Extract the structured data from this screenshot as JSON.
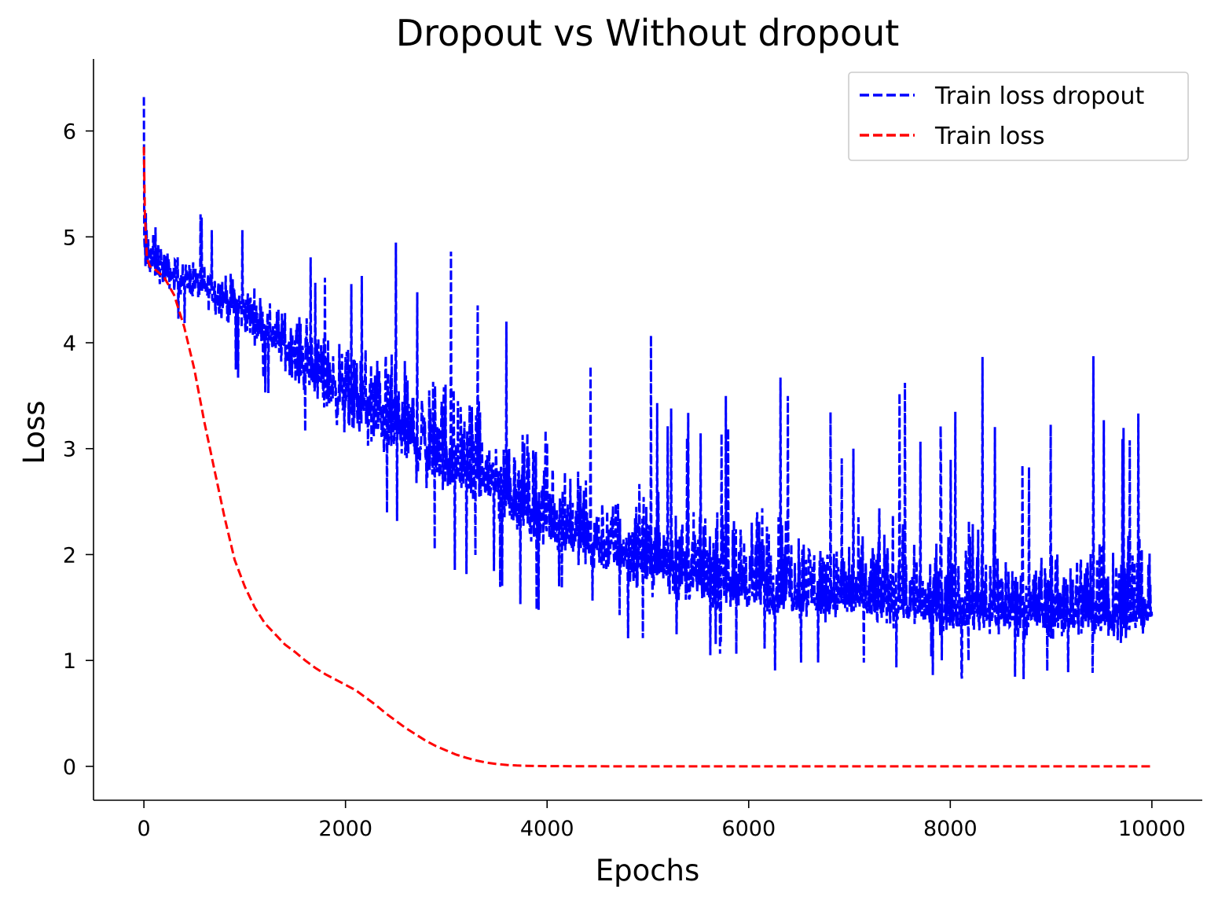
{
  "chart_data": {
    "type": "line",
    "title": "Dropout vs Without dropout",
    "xlabel": "Epochs",
    "ylabel": "Loss",
    "xlim": [
      -500,
      10500
    ],
    "ylim": [
      -0.32,
      6.68
    ],
    "xticks": [
      0,
      2000,
      4000,
      6000,
      8000,
      10000
    ],
    "xtick_labels": [
      "0",
      "2000",
      "4000",
      "6000",
      "8000",
      "10000"
    ],
    "yticks": [
      0,
      1,
      2,
      3,
      4,
      5,
      6
    ],
    "ytick_labels": [
      "0",
      "1",
      "2",
      "3",
      "4",
      "5",
      "6"
    ],
    "grid": false,
    "legend_position": "top-right",
    "series": [
      {
        "name": "Train loss dropout",
        "color": "#0000ff",
        "line_style": "dashed",
        "x": [
          0,
          250,
          500,
          750,
          1000,
          1250,
          1500,
          1750,
          2000,
          2250,
          2500,
          2750,
          3000,
          3250,
          3500,
          3750,
          4000,
          4250,
          4500,
          4750,
          5000,
          5250,
          5500,
          5750,
          6000,
          6250,
          6500,
          6750,
          7000,
          7250,
          7500,
          7750,
          8000,
          8250,
          8500,
          8750,
          9000,
          9250,
          9500,
          9750,
          10000
        ],
        "mean": [
          4.8,
          4.65,
          4.55,
          4.45,
          4.3,
          4.1,
          3.9,
          3.7,
          3.5,
          3.35,
          3.2,
          3.05,
          2.95,
          2.8,
          2.65,
          2.5,
          2.35,
          2.2,
          2.1,
          2.0,
          1.95,
          1.85,
          1.8,
          1.75,
          1.7,
          1.65,
          1.65,
          1.6,
          1.6,
          1.55,
          1.55,
          1.5,
          1.5,
          1.5,
          1.45,
          1.45,
          1.45,
          1.45,
          1.45,
          1.45,
          1.45
        ],
        "min": [
          4.35,
          4.2,
          4.15,
          3.8,
          3.6,
          3.5,
          3.1,
          2.7,
          2.4,
          2.15,
          2.3,
          1.8,
          1.75,
          1.8,
          1.7,
          1.5,
          1.45,
          1.5,
          1.3,
          1.2,
          1.1,
          1.1,
          0.95,
          1.0,
          1.0,
          0.88,
          0.95,
          0.9,
          0.95,
          0.85,
          0.85,
          0.85,
          0.85,
          0.8,
          0.8,
          0.8,
          0.65,
          0.7,
          0.7,
          0.68,
          1.0
        ],
        "max": [
          6.32,
          5.2,
          5.28,
          5.1,
          5.1,
          5.05,
          4.95,
          4.9,
          4.9,
          5.2,
          5.15,
          4.8,
          5.35,
          4.6,
          4.4,
          4.4,
          4.55,
          4.1,
          3.95,
          3.5,
          4.15,
          3.6,
          3.4,
          3.6,
          3.85,
          4.25,
          3.7,
          3.4,
          3.2,
          3.75,
          4.15,
          3.3,
          3.3,
          4.3,
          3.45,
          3.3,
          3.6,
          3.6,
          4.1,
          3.45,
          3.65
        ]
      },
      {
        "name": "Train loss",
        "color": "#ff0000",
        "line_style": "dashed",
        "x": [
          0,
          10,
          30,
          60,
          100,
          200,
          300,
          400,
          500,
          600,
          700,
          800,
          900,
          1000,
          1100,
          1200,
          1300,
          1400,
          1500,
          1600,
          1700,
          1800,
          1900,
          2000,
          2100,
          2200,
          2300,
          2400,
          2500,
          2600,
          2700,
          2800,
          2900,
          3000,
          3100,
          3200,
          3300,
          3400,
          3500,
          3600,
          3700,
          3800,
          3900,
          4000,
          4500,
          5000,
          6000,
          7000,
          8000,
          9000,
          10000
        ],
        "y": [
          5.85,
          5.2,
          4.8,
          4.72,
          4.7,
          4.62,
          4.45,
          4.15,
          3.75,
          3.25,
          2.8,
          2.35,
          1.95,
          1.7,
          1.5,
          1.35,
          1.25,
          1.15,
          1.08,
          1.0,
          0.93,
          0.87,
          0.82,
          0.77,
          0.72,
          0.65,
          0.58,
          0.5,
          0.43,
          0.36,
          0.3,
          0.24,
          0.19,
          0.15,
          0.11,
          0.08,
          0.055,
          0.035,
          0.022,
          0.013,
          0.008,
          0.005,
          0.003,
          0.002,
          0.001,
          0.0,
          0.0,
          0.0,
          0.0,
          0.0,
          0.0
        ]
      }
    ]
  }
}
